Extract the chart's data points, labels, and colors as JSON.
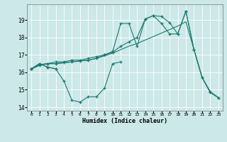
{
  "xlabel": "Humidex (Indice chaleur)",
  "xlim": [
    -0.5,
    23.5
  ],
  "ylim": [
    13.8,
    19.9
  ],
  "yticks": [
    14,
    15,
    16,
    17,
    18,
    19
  ],
  "xticks": [
    0,
    1,
    2,
    3,
    4,
    5,
    6,
    7,
    8,
    9,
    10,
    11,
    12,
    13,
    14,
    15,
    16,
    17,
    18,
    19,
    20,
    21,
    22,
    23
  ],
  "bg_color": "#cce8e8",
  "grid_color": "#ffffff",
  "line_color": "#1a7a6e",
  "lines": [
    {
      "x": [
        0,
        1,
        2,
        3
      ],
      "y": [
        16.2,
        16.5,
        16.3,
        16.2
      ],
      "marker": true
    },
    {
      "x": [
        0,
        1,
        2,
        3,
        4,
        5,
        6,
        7,
        8,
        9,
        10,
        11
      ],
      "y": [
        16.2,
        16.5,
        16.3,
        16.2,
        15.5,
        14.4,
        14.3,
        14.6,
        14.6,
        15.1,
        16.5,
        16.6
      ],
      "marker": true
    },
    {
      "x": [
        0,
        1,
        2,
        3,
        4,
        5,
        6,
        7,
        8,
        9,
        10,
        11,
        12,
        13,
        14,
        15,
        16,
        17,
        18,
        19,
        20,
        21,
        22,
        23
      ],
      "y": [
        16.2,
        16.4,
        16.5,
        16.5,
        16.55,
        16.6,
        16.65,
        16.7,
        16.8,
        16.95,
        17.1,
        17.3,
        17.5,
        17.65,
        17.85,
        18.05,
        18.25,
        18.45,
        18.65,
        18.9,
        17.3,
        15.7,
        14.85,
        14.55
      ],
      "marker": false
    },
    {
      "x": [
        0,
        1,
        2,
        3,
        4,
        5,
        6,
        7,
        8,
        9,
        10,
        11,
        12,
        13,
        14,
        15,
        16,
        17,
        18,
        19,
        20,
        21,
        22,
        23
      ],
      "y": [
        16.2,
        16.4,
        16.5,
        16.6,
        16.6,
        16.7,
        16.7,
        16.8,
        16.9,
        17.0,
        17.2,
        18.8,
        18.8,
        17.5,
        19.05,
        19.25,
        18.8,
        18.2,
        18.2,
        19.5,
        17.3,
        15.7,
        14.9,
        14.55
      ],
      "marker": true
    },
    {
      "x": [
        0,
        1,
        2,
        3,
        4,
        5,
        6,
        7,
        8,
        9,
        10,
        11,
        12,
        13,
        14,
        15,
        16,
        17,
        18,
        19,
        20,
        21,
        22,
        23
      ],
      "y": [
        16.2,
        16.45,
        16.5,
        16.5,
        16.55,
        16.6,
        16.65,
        16.7,
        16.8,
        17.0,
        17.15,
        17.5,
        17.75,
        18.0,
        19.05,
        19.25,
        19.2,
        18.85,
        18.2,
        19.5,
        17.3,
        15.7,
        14.85,
        14.55
      ],
      "marker": true
    }
  ]
}
